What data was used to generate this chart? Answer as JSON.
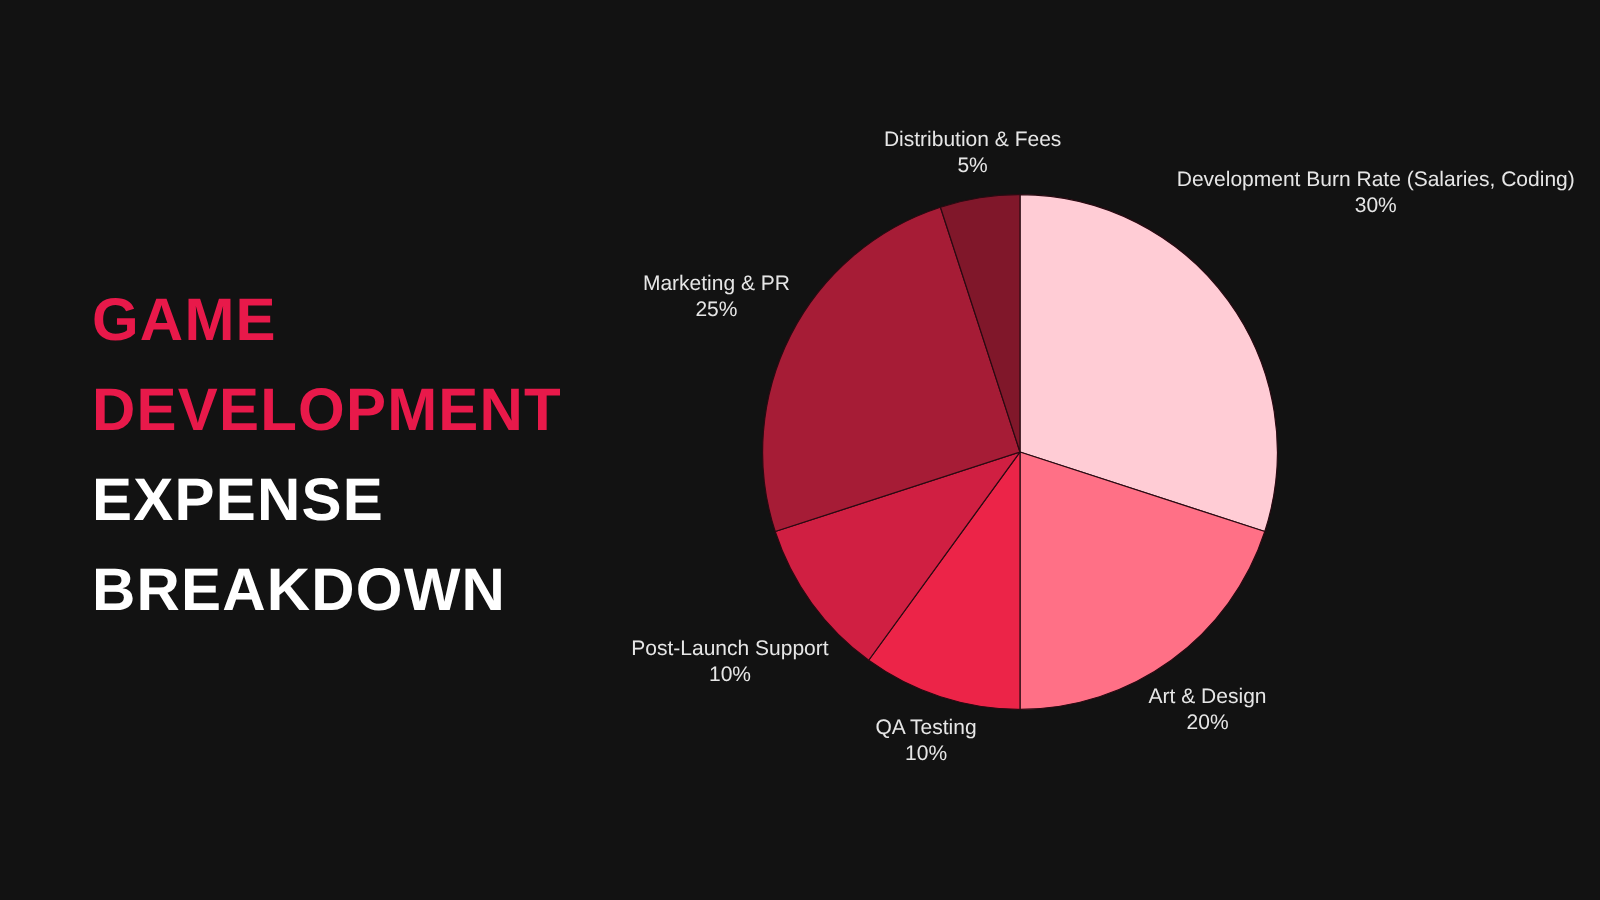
{
  "chart_data": {
    "type": "pie",
    "title": "GAME DEVELOPMENT EXPENSE BREAKDOWN",
    "categories": [
      "Development Burn Rate (Salaries, Coding)",
      "Art & Design",
      "QA Testing",
      "Post-Launch Support",
      "Marketing & PR",
      "Distribution & Fees"
    ],
    "values": [
      30,
      20,
      10,
      10,
      25,
      5
    ],
    "colors": [
      "#ffccd5",
      "#ff7086",
      "#ec2448",
      "#d01f42",
      "#a61c36",
      "#80172a"
    ],
    "value_labels": [
      "30%",
      "20%",
      "10%",
      "10%",
      "25%",
      "5%"
    ]
  }
}
